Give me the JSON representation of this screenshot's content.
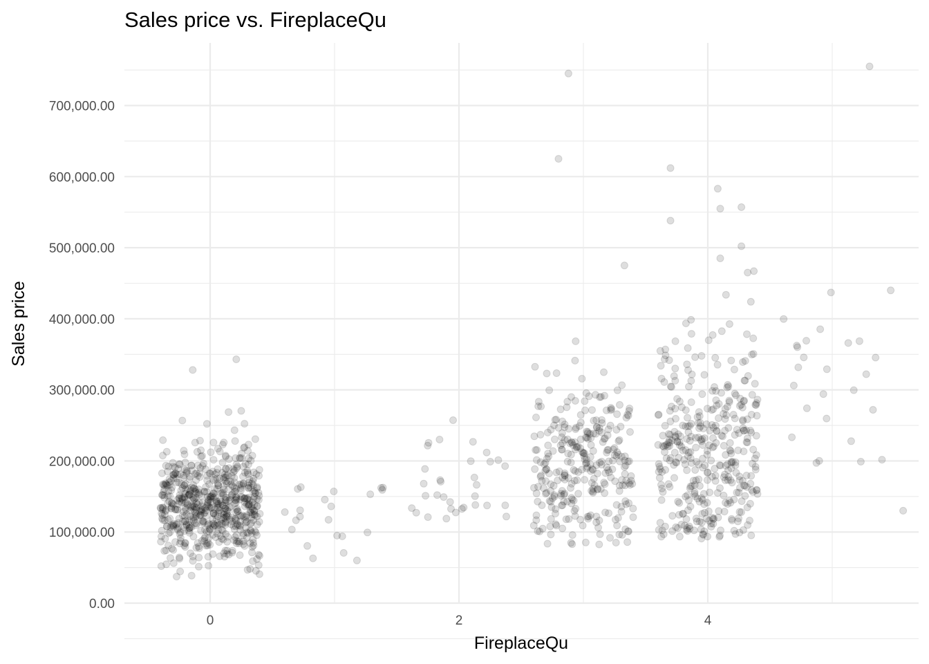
{
  "chart_data": {
    "type": "scatter",
    "title": "Sales price vs. FireplaceQu",
    "xlabel": "FireplaceQu",
    "ylabel": "Sales price",
    "xlim": [
      -0.7,
      5.7
    ],
    "ylim": [
      0,
      780000
    ],
    "x_ticks": [
      0,
      2,
      4
    ],
    "x_tick_labels": [
      "0",
      "2",
      "4"
    ],
    "x_minor_ticks": [
      1,
      3,
      5
    ],
    "y_ticks": [
      0,
      100000,
      200000,
      300000,
      400000,
      500000,
      600000,
      700000
    ],
    "y_tick_labels": [
      "0.00",
      "100,000.00",
      "200,000.00",
      "300,000.00",
      "400,000.00",
      "500,000.00",
      "600,000.00",
      "700,000.00"
    ],
    "grid": true,
    "marker_color": "#000000",
    "marker_alpha": 0.15,
    "notable_points": [
      {
        "x": 2.88,
        "y": 745000
      },
      {
        "x": 5.3,
        "y": 755000
      },
      {
        "x": 2.8,
        "y": 625000
      },
      {
        "x": 3.7,
        "y": 612000
      },
      {
        "x": 4.08,
        "y": 583000
      },
      {
        "x": 4.27,
        "y": 557000
      },
      {
        "x": 4.1,
        "y": 555000
      },
      {
        "x": 3.7,
        "y": 538000
      },
      {
        "x": 4.27,
        "y": 502000
      },
      {
        "x": 4.1,
        "y": 485000
      },
      {
        "x": 3.33,
        "y": 475000
      },
      {
        "x": 4.37,
        "y": 467000
      },
      {
        "x": 4.32,
        "y": 465000
      },
      {
        "x": 5.47,
        "y": 440000
      },
      {
        "x": 4.99,
        "y": 437000
      },
      {
        "x": 0.21,
        "y": 343000
      },
      {
        "x": -0.14,
        "y": 328000
      },
      {
        "x": 4.72,
        "y": 360000
      },
      {
        "x": 5.57,
        "y": 130000
      },
      {
        "x": 5.23,
        "y": 199000
      },
      {
        "x": 1.18,
        "y": 60000
      },
      {
        "x": 1.02,
        "y": 95000
      }
    ],
    "point_groups": [
      {
        "x": 0,
        "jitter": 0.4,
        "count": 640,
        "y_min": 35000,
        "y_max": 343000,
        "y_center": 140000,
        "y_spread": 40000
      },
      {
        "x": 1,
        "jitter": 0.4,
        "count": 20,
        "y_min": 60000,
        "y_max": 175000,
        "y_center": 130000,
        "y_spread": 30000
      },
      {
        "x": 2,
        "jitter": 0.4,
        "count": 33,
        "y_min": 115000,
        "y_max": 262000,
        "y_center": 165000,
        "y_spread": 35000
      },
      {
        "x": 3,
        "jitter": 0.4,
        "count": 310,
        "y_min": 82000,
        "y_max": 425000,
        "y_center": 195000,
        "y_spread": 60000
      },
      {
        "x": 4,
        "jitter": 0.4,
        "count": 380,
        "y_min": 90000,
        "y_max": 452000,
        "y_center": 215000,
        "y_spread": 75000
      },
      {
        "x": 5,
        "jitter": 0.4,
        "count": 22,
        "y_min": 187000,
        "y_max": 426000,
        "y_center": 300000,
        "y_spread": 70000
      }
    ]
  }
}
